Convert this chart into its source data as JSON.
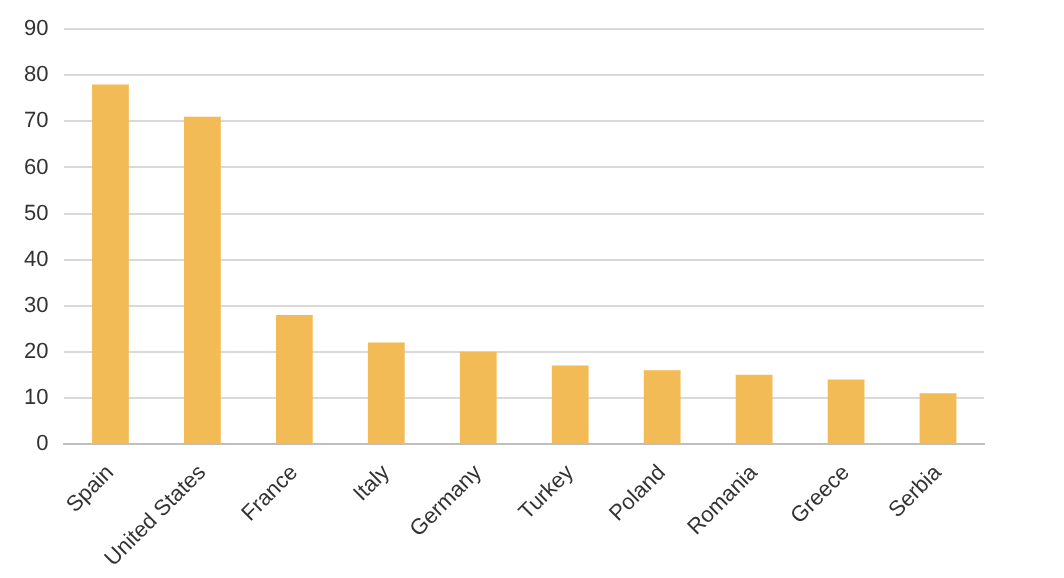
{
  "chart_data": {
    "type": "bar",
    "categories": [
      "Spain",
      "United States",
      "France",
      "Italy",
      "Germany",
      "Turkey",
      "Poland",
      "Romania",
      "Greece",
      "Serbia"
    ],
    "values": [
      78,
      71,
      28,
      22,
      20,
      17,
      16,
      15,
      14,
      11
    ],
    "color": "#f2bb55",
    "ylim": [
      0,
      90
    ],
    "yticks": [
      0,
      10,
      20,
      30,
      40,
      50,
      60,
      70,
      80,
      90
    ],
    "grid": "y"
  }
}
